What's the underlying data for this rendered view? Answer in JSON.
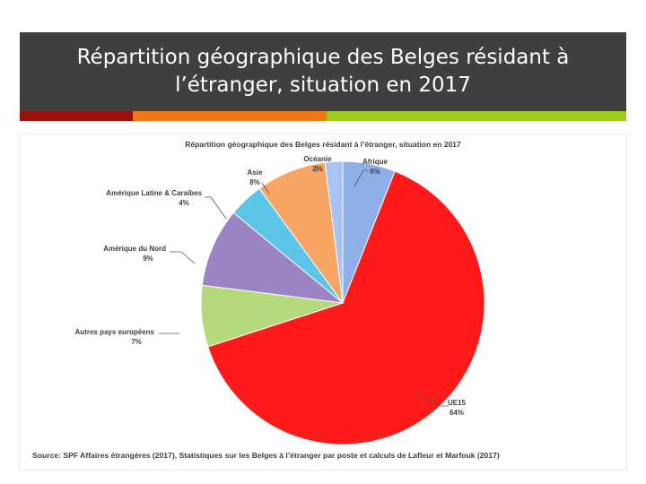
{
  "slide": {
    "title": "Répartition géographique des Belges résidant à l’étranger, situation en 2017"
  },
  "chart_data": {
    "type": "pie",
    "title": "Répartition géographique des Belges résidant à l’étranger, situation en 2017",
    "source": "Source: SPF Affaires étrangères (2017), Statistiques sur les Belges à l’étranger par poste et calculs de Lafleur et Marfouk (2017)",
    "slices": [
      {
        "name": "Afrique",
        "value": 6,
        "label": "6%",
        "color": "#8eaee8"
      },
      {
        "name": "UE15",
        "value": 64,
        "label": "64%",
        "color": "#ff1a1a"
      },
      {
        "name": "Autres pays européens",
        "value": 7,
        "label": "7%",
        "color": "#b5d97a"
      },
      {
        "name": "Amérique du Nord",
        "value": 9,
        "label": "9%",
        "color": "#9a84c4"
      },
      {
        "name": "Amérique Latine & Caraïbes",
        "value": 4,
        "label": "4%",
        "color": "#5cc5e8"
      },
      {
        "name": "Asie",
        "value": 8,
        "label": "8%",
        "color": "#f7a565"
      },
      {
        "name": "Océanie",
        "value": 2,
        "label": "2%",
        "color": "#a9c4f2"
      }
    ],
    "start_angle_deg": 0,
    "direction": "clockwise"
  }
}
